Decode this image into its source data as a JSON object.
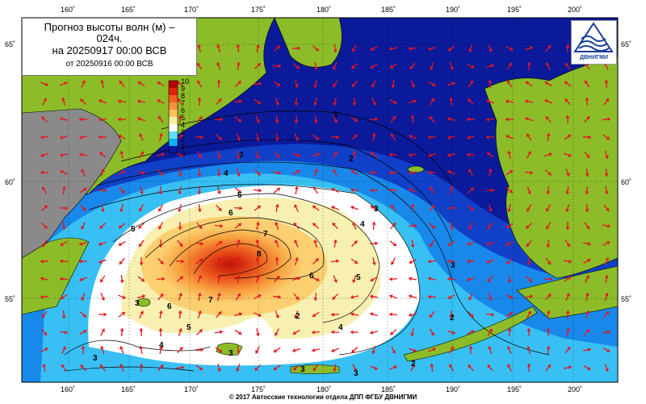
{
  "title": {
    "line1": "Прогноз высоты волн (м) –",
    "line2": "024ч.",
    "line3": "на 20250917 00:00 ВСВ",
    "line4": "от 20250916 00:00 ВСВ"
  },
  "footer": "© 2017 Автосские технологии отдела ДПП ФГБУ ДВНИГМИ",
  "logo_text": "ДВНИГМИ",
  "longitude_labels": [
    "160˚",
    "165˚",
    "170˚",
    "175˚",
    "180˚",
    "185˚",
    "190˚",
    "195˚",
    "200˚"
  ],
  "latitude_labels": [
    "65˚",
    "60˚",
    "55˚"
  ],
  "color_scale": {
    "labels": [
      "10",
      "9",
      "8",
      "7",
      "6",
      "5",
      "4",
      "3",
      "2",
      "1",
      "0"
    ],
    "colors": [
      "#b80000",
      "#e02010",
      "#f06020",
      "#f89040",
      "#fcc060",
      "#f8f0a0",
      "#ffffff",
      "#60e0f8",
      "#10b0f0",
      "#1060e0",
      "#0818a0"
    ]
  },
  "contour_labels": [
    "1",
    "2",
    "3",
    "3",
    "4",
    "5",
    "6",
    "7",
    "8",
    "6",
    "5",
    "7",
    "6",
    "5",
    "4",
    "4",
    "3",
    "2",
    "2",
    "3",
    "3",
    "3",
    "4",
    "3",
    "3",
    "5",
    "2"
  ],
  "colors": {
    "land": "#8cbc28",
    "grey_land": "#8a8a8a",
    "deep_ocean": "#0a1a9a",
    "arrow": "#e8141e"
  }
}
